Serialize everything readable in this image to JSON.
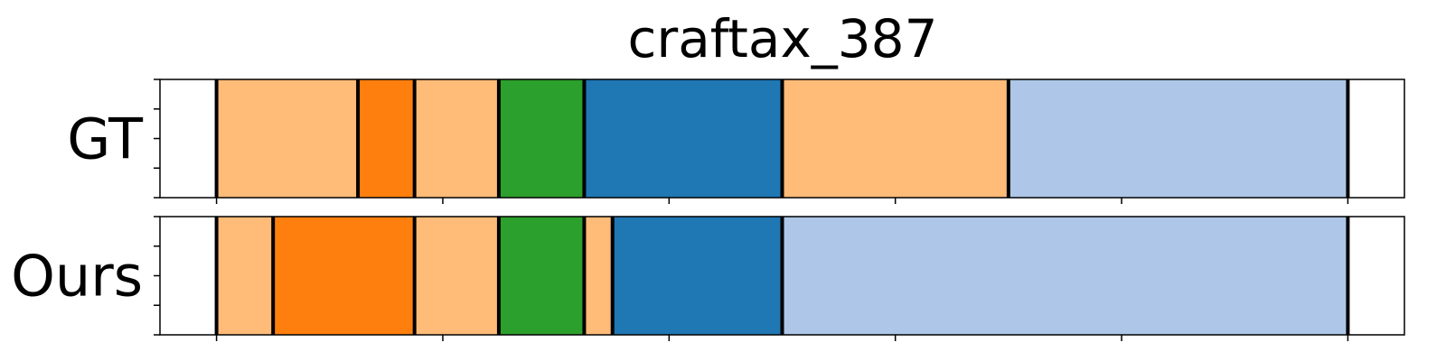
{
  "chart_data": {
    "type": "bar",
    "title": "craftax_387",
    "xlabel": "",
    "ylabel": "",
    "xlim": [
      -0.1,
      2.1
    ],
    "grid": false,
    "legend": "none",
    "rows": [
      {
        "name": "GT",
        "segments": [
          {
            "start": 0.0,
            "end": 0.25,
            "color": "#ffbb78"
          },
          {
            "start": 0.25,
            "end": 0.35,
            "color": "#ff7f0e"
          },
          {
            "start": 0.35,
            "end": 0.499,
            "color": "#ffbb78"
          },
          {
            "start": 0.499,
            "end": 0.65,
            "color": "#2ca02c"
          },
          {
            "start": 0.65,
            "end": 1.0,
            "color": "#1f77b4"
          },
          {
            "start": 1.0,
            "end": 1.4,
            "color": "#ffbb78"
          },
          {
            "start": 1.4,
            "end": 2.0,
            "color": "#aec7e8"
          }
        ]
      },
      {
        "name": "Ours",
        "segments": [
          {
            "start": 0.0,
            "end": 0.1,
            "color": "#ffbb78"
          },
          {
            "start": 0.1,
            "end": 0.35,
            "color": "#ff7f0e"
          },
          {
            "start": 0.35,
            "end": 0.499,
            "color": "#ffbb78"
          },
          {
            "start": 0.499,
            "end": 0.65,
            "color": "#2ca02c"
          },
          {
            "start": 0.65,
            "end": 0.7,
            "color": "#ffbb78"
          },
          {
            "start": 0.7,
            "end": 1.0,
            "color": "#1f77b4"
          },
          {
            "start": 1.0,
            "end": 2.0,
            "color": "#aec7e8"
          }
        ]
      }
    ],
    "xticks": [
      0.0,
      0.4,
      0.8,
      1.2,
      1.6,
      2.0
    ],
    "yticks_per_row": 5
  }
}
